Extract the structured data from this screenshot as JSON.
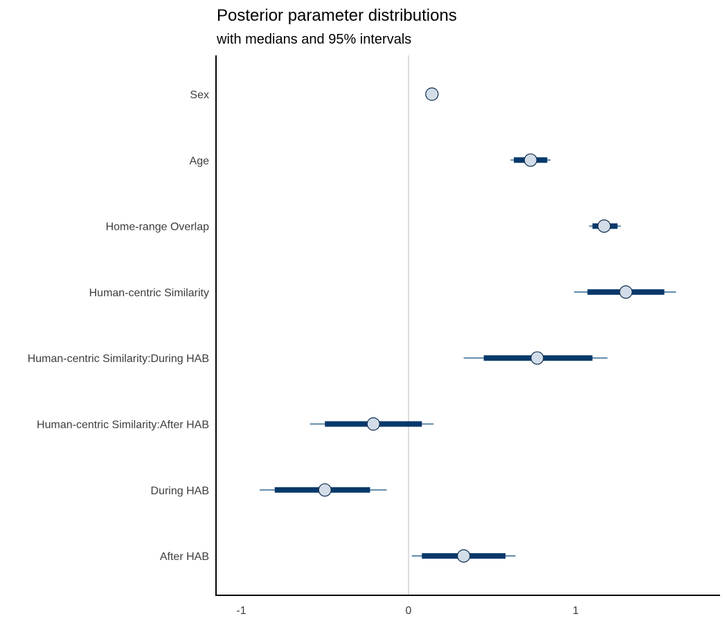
{
  "chart_data": {
    "type": "interval",
    "title": "Posterior parameter distributions",
    "subtitle": "with medians and 95% intervals",
    "xlabel": "",
    "ylabel": "",
    "xlim": [
      -1.15,
      1.85
    ],
    "xticks": [
      -1,
      0,
      1
    ],
    "tick_labels": [
      "-1",
      "0",
      "1"
    ],
    "reference_line": 0,
    "grid": false,
    "colors": {
      "inner_interval": "#08396b",
      "outer_interval": "#5b87a8",
      "point_fill": "#d2dde9",
      "point_stroke": "#0b2a4a",
      "reference_line": "#dcdcdc",
      "axis": "#000000"
    },
    "parameters": [
      {
        "label": "Sex",
        "median": 0.14,
        "inner": [
          0.13,
          0.15
        ],
        "outer": [
          0.125,
          0.155
        ]
      },
      {
        "label": "Age",
        "median": 0.73,
        "inner": [
          0.63,
          0.83
        ],
        "outer": [
          0.61,
          0.85
        ]
      },
      {
        "label": "Home-range Overlap",
        "median": 1.17,
        "inner": [
          1.1,
          1.25
        ],
        "outer": [
          1.08,
          1.27
        ]
      },
      {
        "label": "Human-centric Similarity",
        "median": 1.3,
        "inner": [
          1.07,
          1.53
        ],
        "outer": [
          0.99,
          1.6
        ]
      },
      {
        "label": "Human-centric Similarity:During HAB",
        "median": 0.77,
        "inner": [
          0.45,
          1.1
        ],
        "outer": [
          0.33,
          1.19
        ]
      },
      {
        "label": "Human-centric Similarity:After HAB",
        "median": -0.21,
        "inner": [
          -0.5,
          0.08
        ],
        "outer": [
          -0.59,
          0.15
        ]
      },
      {
        "label": "During HAB",
        "median": -0.5,
        "inner": [
          -0.8,
          -0.23
        ],
        "outer": [
          -0.89,
          -0.13
        ]
      },
      {
        "label": "After HAB",
        "median": 0.33,
        "inner": [
          0.08,
          0.58
        ],
        "outer": [
          0.02,
          0.64
        ]
      }
    ]
  }
}
